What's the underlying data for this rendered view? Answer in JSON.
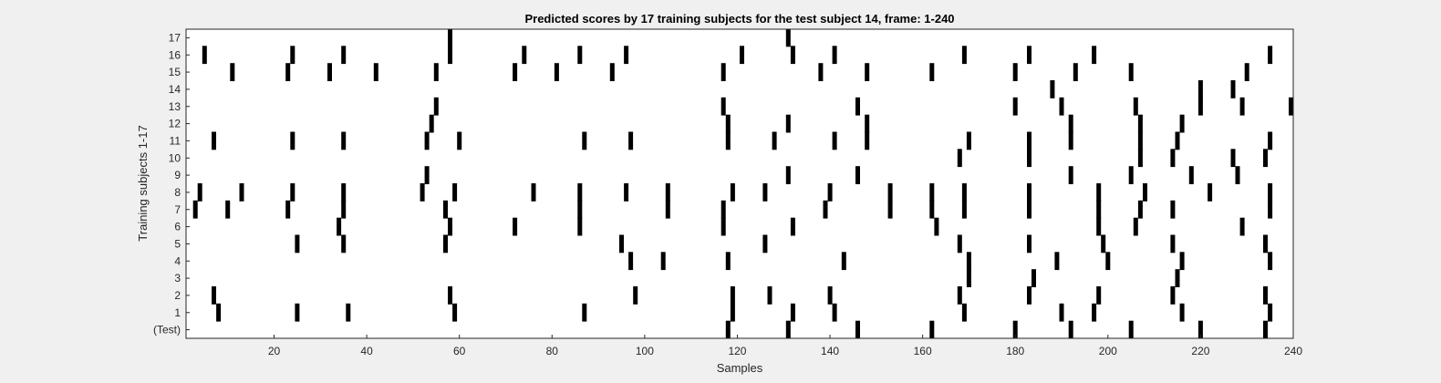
{
  "chart_data": {
    "type": "scatter",
    "title": "Predicted scores by 17 training subjects for the test subject 14, frame: 1-240",
    "xlabel": "Samples",
    "ylabel": "Training subjects 1-17",
    "xlim": [
      1,
      240
    ],
    "x_ticks": [
      20,
      40,
      60,
      80,
      100,
      120,
      140,
      160,
      180,
      200,
      220,
      240
    ],
    "row_labels": [
      "(Test)",
      "1",
      "2",
      "3",
      "4",
      "5",
      "6",
      "7",
      "8",
      "9",
      "10",
      "11",
      "12",
      "13",
      "14",
      "15",
      "16",
      "17"
    ],
    "grid": false,
    "legend": "none",
    "colors": {
      "background": "#f0f0f0",
      "plot": "#ffffff",
      "mark": "#000000",
      "text": "#262626",
      "axis": "#262626"
    },
    "rows": [
      {
        "label": "(Test)",
        "x": [
          118,
          131,
          146,
          162,
          180,
          192,
          205,
          220,
          234
        ]
      },
      {
        "label": "1",
        "x": [
          8,
          25,
          36,
          59,
          87,
          119,
          132,
          141,
          169,
          190,
          197,
          216,
          235
        ]
      },
      {
        "label": "2",
        "x": [
          7,
          58,
          98,
          119,
          127,
          140,
          168,
          183,
          198,
          214,
          234
        ]
      },
      {
        "label": "3",
        "x": [
          170,
          184,
          215
        ]
      },
      {
        "label": "4",
        "x": [
          97,
          104,
          118,
          143,
          170,
          189,
          200,
          216,
          235
        ]
      },
      {
        "label": "5",
        "x": [
          25,
          35,
          57,
          95,
          126,
          168,
          183,
          199,
          214,
          234
        ]
      },
      {
        "label": "6",
        "x": [
          34,
          58,
          72,
          86,
          117,
          132,
          163,
          198,
          206,
          229
        ]
      },
      {
        "label": "7",
        "x": [
          3,
          10,
          23,
          35,
          57,
          86,
          105,
          117,
          139,
          153,
          162,
          169,
          183,
          198,
          207,
          214,
          235
        ]
      },
      {
        "label": "8",
        "x": [
          4,
          13,
          24,
          35,
          52,
          59,
          76,
          86,
          96,
          105,
          119,
          126,
          140,
          153,
          162,
          169,
          183,
          198,
          208,
          222,
          235
        ]
      },
      {
        "label": "9",
        "x": [
          53,
          131,
          146,
          192,
          205,
          218,
          228
        ]
      },
      {
        "label": "10",
        "x": [
          168,
          183,
          207,
          214,
          227,
          234
        ]
      },
      {
        "label": "11",
        "x": [
          7,
          24,
          35,
          53,
          60,
          87,
          97,
          118,
          128,
          141,
          148,
          170,
          183,
          192,
          207,
          215,
          235
        ]
      },
      {
        "label": "12",
        "x": [
          54,
          118,
          131,
          148,
          192,
          207,
          216
        ]
      },
      {
        "label": "13",
        "x": [
          55,
          117,
          146,
          180,
          190,
          206,
          220,
          229,
          240
        ]
      },
      {
        "label": "14",
        "x": [
          188,
          220,
          227
        ]
      },
      {
        "label": "15",
        "x": [
          11,
          23,
          32,
          42,
          55,
          72,
          81,
          93,
          117,
          138,
          148,
          162,
          180,
          193,
          205,
          230
        ]
      },
      {
        "label": "16",
        "x": [
          5,
          24,
          35,
          58,
          74,
          86,
          96,
          121,
          132,
          141,
          169,
          183,
          197,
          235
        ]
      },
      {
        "label": "17",
        "x": [
          58,
          131
        ]
      }
    ]
  }
}
